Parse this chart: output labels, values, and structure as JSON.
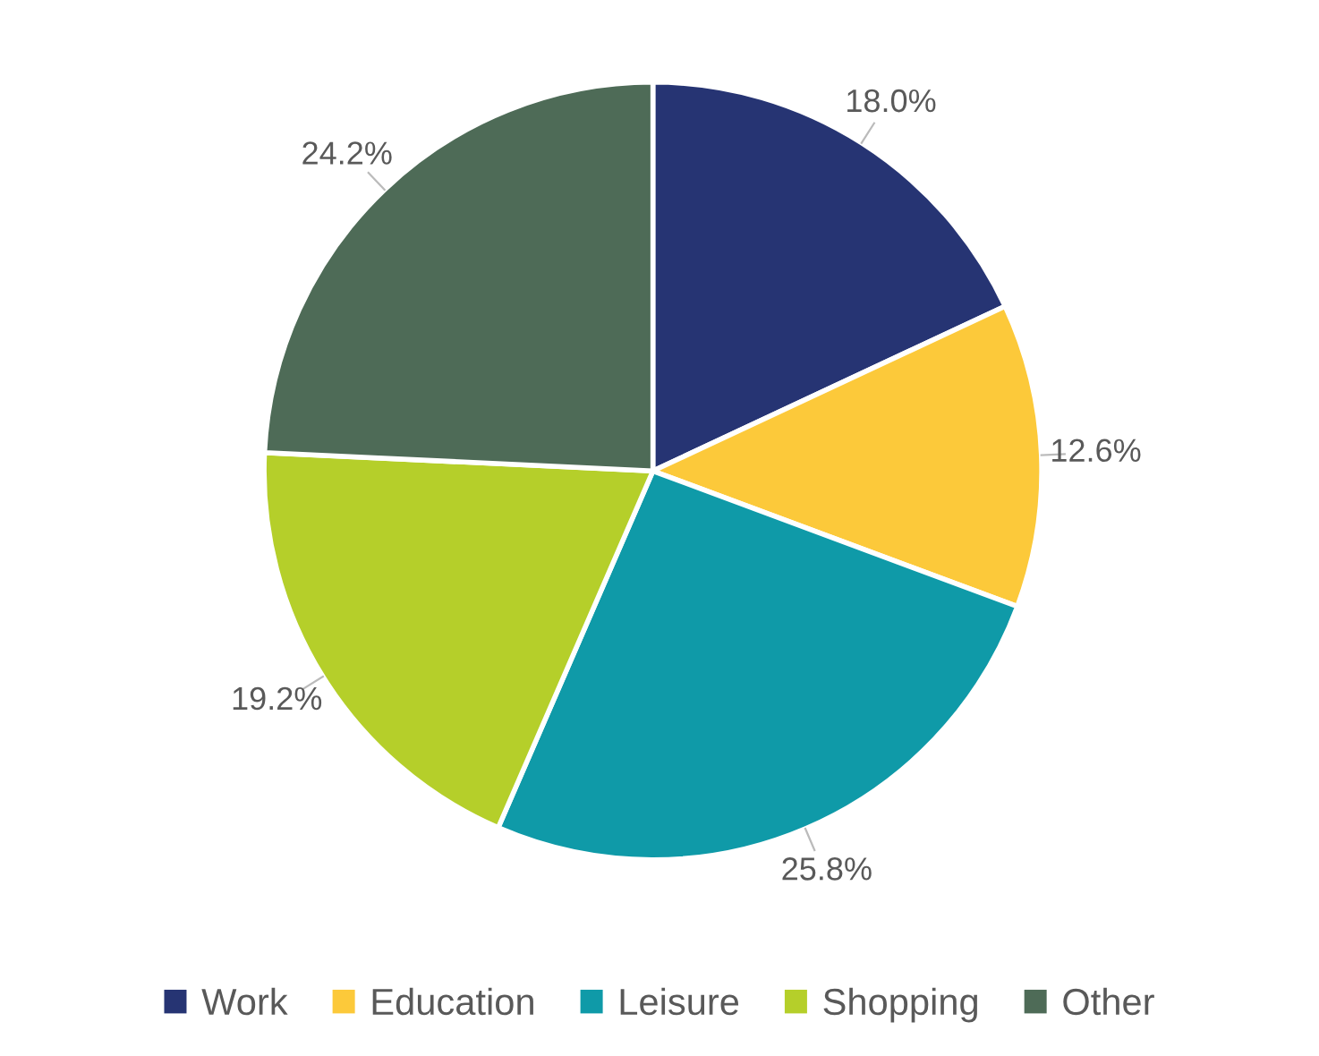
{
  "chart_data": {
    "type": "pie",
    "categories": [
      "Work",
      "Education",
      "Leisure",
      "Shopping",
      "Other"
    ],
    "values": [
      18.0,
      12.6,
      25.8,
      19.2,
      24.2
    ],
    "value_labels": [
      "18.0%",
      "12.6%",
      "25.8%",
      "19.2%",
      "24.2%"
    ],
    "colors": [
      "#263473",
      "#fcc93a",
      "#0f9aa8",
      "#b5cf2a",
      "#4e6b57"
    ],
    "legend": "bottom"
  }
}
